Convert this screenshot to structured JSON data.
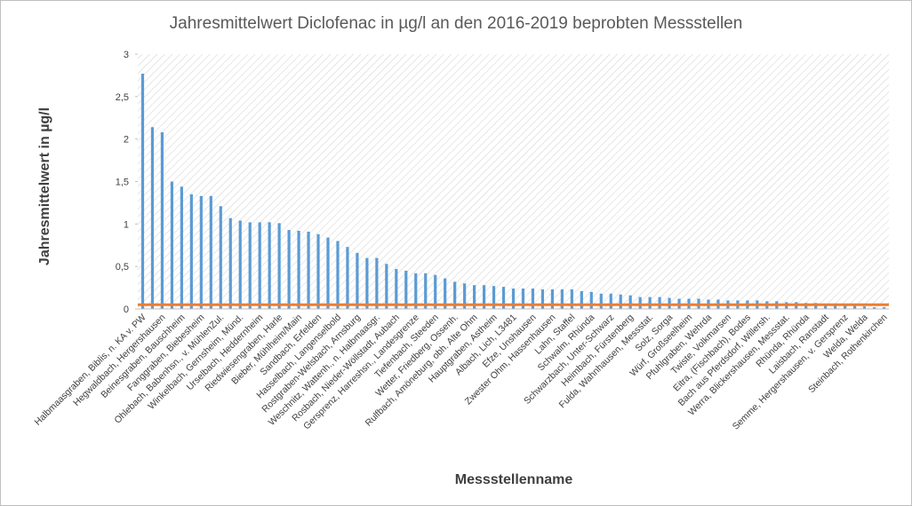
{
  "chart_data": {
    "type": "bar",
    "title": "Jahresmittelwert Diclofenac in µg/l an den 2016-2019 beprobten Messstellen",
    "x_label": "Messstellenname",
    "y_label": "Jahresmittelwert in µg/l",
    "categories": [
      "Halbmaasgraben, Biblis, n. KA v. PW",
      null,
      "Hegwaldbach, Hergershausen",
      null,
      "Beinesgraben, Bauschheim",
      null,
      "Fanggraben, Biebesheim",
      null,
      "Ohlebach, Babenhsn., v. MühlenZul.",
      null,
      "Winkelbach, Gernsheim, Münd.",
      null,
      "Urselbach, Heddernheim",
      null,
      "Riedwiesengraben, Harle",
      null,
      "Bieber, Mühlheim/Main",
      null,
      "Sandbach, Erfelden",
      null,
      "Hasselbach, Langenselbold",
      null,
      "Rostgraben-Welsbach, Arnsburg",
      null,
      "Weschnitz, Wattenh., n. Halbmaasgr.",
      null,
      "Rosbach, Nieder-Wöllstadt, Aubach",
      null,
      "Gersprenz, Harreshsn., Landesgrenze",
      null,
      "Tiefenbach, Steeden",
      null,
      "Wetter, Friedberg, Ossenh.",
      null,
      "Rulfbach, Amöneburg, obh. Alte Ohm",
      null,
      "Hauptgraben, Astheim",
      null,
      "Albach, Lich, L3481",
      null,
      "Efze, Unshausen",
      null,
      "Zwester Ohm, Hassenhausen",
      null,
      "Lahn, Staffel",
      null,
      "Schwalm, Rhünda",
      null,
      "Schwarzbach, Unter-Schwarz",
      null,
      "Heimbach, Fürstenberg",
      null,
      "Fulda, Wahnhausen, Messstat.",
      null,
      "Solz, Sorga",
      null,
      "Würf, Großseelheim",
      null,
      "Pfuhlgraben, Wehrda",
      null,
      "Twiste, Volkmarsen",
      null,
      "Eitra, (Fischbach), Bodes",
      null,
      "Bach aus Pferdsdorf, Willersh.",
      null,
      "Werra, Blickershausen, Messstat.",
      null,
      "Rhünda, Rhünda",
      null,
      "Laisbach, Ranstadt",
      null,
      "Semme, Hergershausen, v. Gersprenz",
      null,
      "Welda, Welda",
      null,
      "Steinbach, Rothenkirchen"
    ],
    "values": [
      2.77,
      2.14,
      2.08,
      1.5,
      1.44,
      1.35,
      1.33,
      1.33,
      1.21,
      1.07,
      1.04,
      1.02,
      1.02,
      1.02,
      1.01,
      0.93,
      0.92,
      0.91,
      0.88,
      0.84,
      0.8,
      0.73,
      0.66,
      0.6,
      0.6,
      0.53,
      0.47,
      0.45,
      0.42,
      0.42,
      0.4,
      0.36,
      0.32,
      0.3,
      0.28,
      0.28,
      0.27,
      0.26,
      0.24,
      0.24,
      0.24,
      0.23,
      0.23,
      0.23,
      0.23,
      0.21,
      0.2,
      0.18,
      0.18,
      0.17,
      0.16,
      0.14,
      0.14,
      0.14,
      0.13,
      0.12,
      0.12,
      0.12,
      0.11,
      0.11,
      0.1,
      0.1,
      0.1,
      0.1,
      0.09,
      0.09,
      0.08,
      0.08,
      0.07,
      0.07,
      0.06,
      0.06,
      0.05,
      0.04,
      0.03,
      0.02,
      0.02
    ],
    "color": "#5b9bd5",
    "reference_line": 0.05,
    "reference_color": "#ed7d31",
    "ylim": [
      0,
      3
    ],
    "yticks": [
      0,
      {
        "value": 0.5,
        "label": "0,5"
      },
      1,
      {
        "value": 1.5,
        "label": "1,5"
      },
      2,
      {
        "value": 2.5,
        "label": "2,5"
      },
      3
    ]
  }
}
